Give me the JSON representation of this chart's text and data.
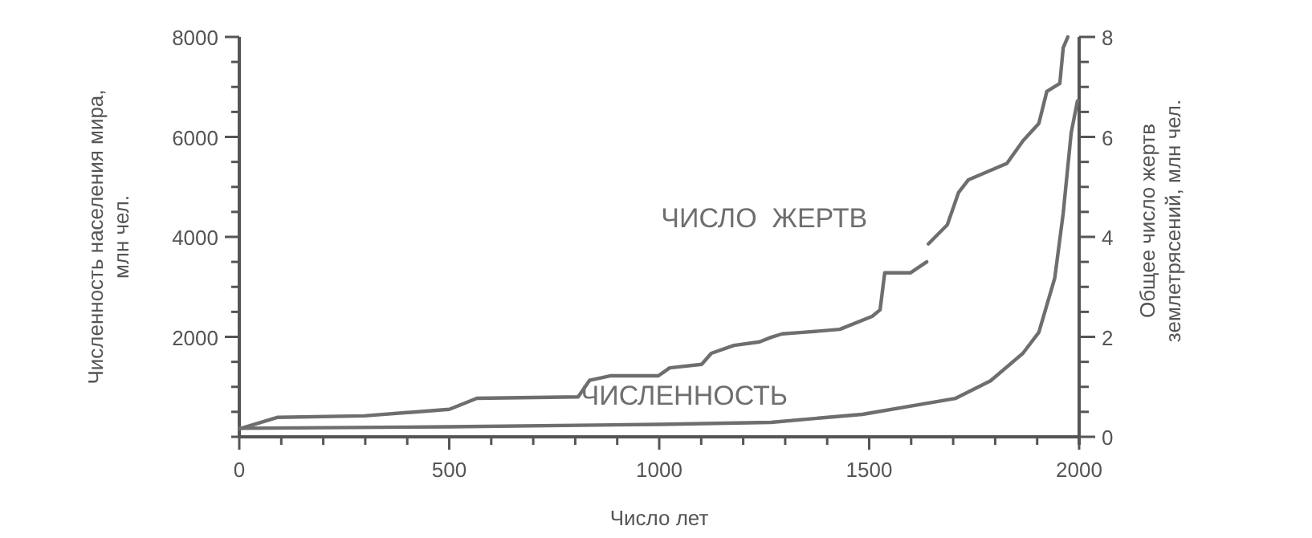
{
  "chart_data": {
    "type": "line",
    "xlabel": "Число лет",
    "ylabel": "Численность населения мира,\nмлн чел.",
    "y2label": "Общее число жертв\nземлетрясений, млн чел.",
    "xlim": [
      0,
      2000
    ],
    "ylim": [
      0,
      8000
    ],
    "y2lim": [
      0,
      8
    ],
    "xticks": [
      0,
      {
        "value": 100,
        "label": null
      },
      {
        "value": 200,
        "label": null
      },
      {
        "value": 300,
        "label": null
      },
      {
        "value": 400,
        "label": null
      },
      500,
      {
        "value": 600,
        "label": null
      },
      {
        "value": 700,
        "label": null
      },
      {
        "value": 800,
        "label": null
      },
      {
        "value": 900,
        "label": null
      },
      1000,
      {
        "value": 1100,
        "label": null
      },
      {
        "value": 1200,
        "label": null
      },
      {
        "value": 1300,
        "label": null
      },
      {
        "value": 1400,
        "label": null
      },
      1500,
      {
        "value": 1600,
        "label": null
      },
      {
        "value": 1700,
        "label": null
      },
      {
        "value": 1800,
        "label": null
      },
      {
        "value": 1900,
        "label": null
      },
      2000
    ],
    "yticks": [
      {
        "value": 0,
        "label": null
      },
      {
        "value": 500,
        "label": null
      },
      {
        "value": 1000,
        "label": null
      },
      {
        "value": 1500,
        "label": null
      },
      2000,
      {
        "value": 2500,
        "label": null
      },
      {
        "value": 3000,
        "label": null
      },
      {
        "value": 3500,
        "label": null
      },
      4000,
      {
        "value": 4500,
        "label": null
      },
      {
        "value": 5000,
        "label": null
      },
      {
        "value": 5500,
        "label": null
      },
      6000,
      {
        "value": 6500,
        "label": null
      },
      {
        "value": 7000,
        "label": null
      },
      {
        "value": 7500,
        "label": null
      },
      8000
    ],
    "y2ticks": [
      0,
      {
        "value": 0.5,
        "label": null
      },
      {
        "value": 1,
        "label": null
      },
      {
        "value": 1.5,
        "label": null
      },
      2,
      {
        "value": 2.5,
        "label": null
      },
      {
        "value": 3,
        "label": null
      },
      {
        "value": 3.5,
        "label": null
      },
      4,
      {
        "value": 4.5,
        "label": null
      },
      {
        "value": 5,
        "label": null
      },
      {
        "value": 5.5,
        "label": null
      },
      6,
      {
        "value": 6.5,
        "label": null
      },
      {
        "value": 7,
        "label": null
      },
      {
        "value": 7.5,
        "label": null
      },
      8
    ],
    "grid": false,
    "marker": "none",
    "line_style": "solid",
    "series": [
      {
        "name": "ЧИСЛО  ЖЕРТВ",
        "color": "#6e6e6e",
        "axis": "y2",
        "x": [
          0,
          92,
          298,
          500,
          566,
          807,
          834,
          883,
          998,
          1025,
          1101,
          1124,
          1178,
          1239,
          1266,
          1293,
          1342,
          1430,
          1507,
          1526,
          1537,
          1598,
          1637,
          1639,
          1641,
          1686,
          1713,
          1736,
          1828,
          1866,
          1904,
          1923,
          1954,
          1962,
          1973
        ],
        "values": [
          0.16,
          0.39,
          0.42,
          0.55,
          0.77,
          0.8,
          1.13,
          1.22,
          1.22,
          1.38,
          1.45,
          1.67,
          1.83,
          1.9,
          1.99,
          2.06,
          2.09,
          2.15,
          2.41,
          2.54,
          3.28,
          3.28,
          3.5,
          null,
          3.86,
          4.24,
          4.89,
          5.14,
          5.47,
          5.92,
          6.27,
          6.91,
          7.07,
          7.78,
          8.0
        ]
      },
      {
        "name": "ЧИСЛЕННОСТЬ",
        "color": "#6e6e6e",
        "x": [
          0,
          500,
          1000,
          1266,
          1484,
          1706,
          1789,
          1866,
          1904,
          1942,
          1962,
          1981,
          1996
        ],
        "values": [
          170,
          200,
          250,
          290,
          450,
          770,
          1120,
          1670,
          2090,
          3180,
          4470,
          6080,
          6720
        ]
      }
    ]
  }
}
